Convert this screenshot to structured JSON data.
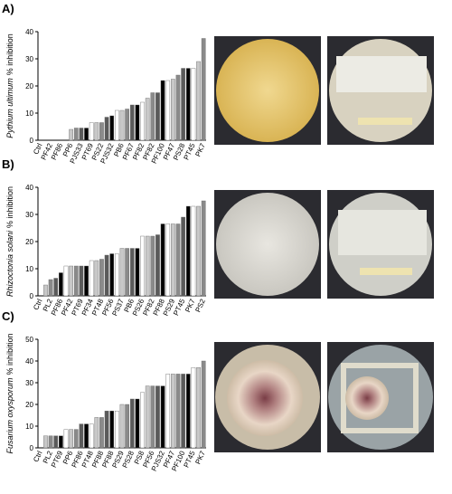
{
  "chart_data": [
    {
      "type": "bar",
      "panel": "A)",
      "ylabel_species": "Pythium ultimum",
      "ylabel_unit": "% inhibition",
      "categories": [
        "Ctrl",
        null,
        "PF42",
        null,
        "PF86",
        null,
        "PP6",
        null,
        "PJS33",
        null,
        "PT69",
        null,
        "PS22",
        null,
        "PJS32",
        null,
        "PB6",
        null,
        "PF67",
        null,
        "PF82",
        null,
        "PF82",
        null,
        "PF100",
        null,
        "PF47",
        null,
        "PS28",
        null,
        "PT45",
        null,
        "PK7"
      ],
      "values": [
        0,
        0,
        0,
        0,
        0,
        0,
        4,
        4.5,
        4.5,
        4.5,
        6.5,
        6.5,
        6.5,
        8.5,
        9,
        11,
        11,
        11.5,
        13,
        13,
        14,
        15.5,
        17.5,
        17.5,
        22,
        22,
        22.5,
        24,
        26.5,
        26.5,
        26.5,
        29,
        37.5
      ],
      "colors": [
        "#ffffff",
        "#c8c8c8",
        "#8a8a8a",
        "#5a5a5a",
        "#000000"
      ],
      "ylim": [
        0,
        40
      ],
      "yticks": [
        0,
        10,
        20,
        30,
        40
      ]
    },
    {
      "type": "bar",
      "panel": "B)",
      "ylabel_species": "Rhizoctonia solani",
      "ylabel_unit": "% inhibition",
      "categories": [
        "Ctrl",
        null,
        "PL2",
        null,
        "PF86",
        null,
        "PF42",
        null,
        "PT69",
        null,
        "PF34",
        null,
        "PT48",
        null,
        "PF56",
        null,
        "PS37",
        null,
        "PB6",
        null,
        "PS26",
        null,
        "PF82",
        null,
        "PF88",
        null,
        "PS29",
        null,
        "PT45",
        null,
        "PK7",
        null,
        "PS2"
      ],
      "values": [
        0,
        4,
        6,
        6.5,
        8.5,
        11,
        11,
        11,
        11,
        11,
        13,
        13,
        13.5,
        15,
        15.5,
        15.5,
        17.5,
        17.5,
        17.5,
        17.5,
        22,
        22,
        22,
        22.5,
        26.5,
        26.5,
        26.5,
        26.5,
        29,
        33,
        33,
        33,
        35
      ],
      "colors": [
        "#ffffff",
        "#c8c8c8",
        "#8a8a8a",
        "#5a5a5a",
        "#000000"
      ],
      "ylim": [
        0,
        40
      ],
      "yticks": [
        0,
        10,
        20,
        30,
        40
      ]
    },
    {
      "type": "bar",
      "panel": "C)",
      "ylabel_species": "Fusarium oxysporum",
      "ylabel_unit": "% inhibition",
      "categories": [
        "Ctrl",
        null,
        "PL2",
        null,
        "PT69",
        null,
        "PP6",
        null,
        "PF86",
        null,
        "PT48",
        null,
        "PF88",
        null,
        "PF88",
        null,
        "PS29",
        null,
        "PS28",
        null,
        "PS8",
        null,
        "PF56",
        null,
        "PJS32",
        null,
        "PF47",
        null,
        "PF100",
        null,
        "PT45",
        null,
        "PK7"
      ],
      "values": [
        0,
        5.5,
        5.5,
        5.5,
        5.5,
        8.5,
        8.5,
        8.5,
        11,
        11,
        11,
        14,
        14,
        17,
        17,
        17,
        20,
        20,
        22.5,
        22.5,
        25.5,
        28.5,
        28.5,
        28.5,
        28.5,
        34,
        34,
        34,
        34,
        34,
        37,
        37,
        40
      ],
      "colors": [
        "#ffffff",
        "#c8c8c8",
        "#8a8a8a",
        "#5a5a5a",
        "#000000"
      ],
      "ylim": [
        0,
        50
      ],
      "yticks": [
        0,
        10,
        20,
        30,
        40,
        50
      ]
    }
  ]
}
